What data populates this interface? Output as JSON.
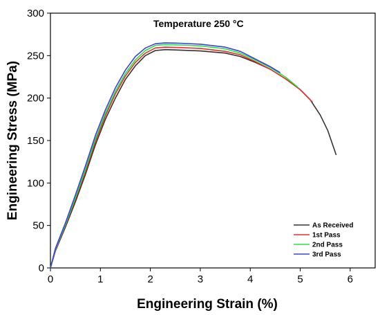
{
  "chart_data": {
    "type": "line",
    "title": "",
    "annotation": "Temperature 250 °C",
    "xlabel": "Engineering Strain (%)",
    "ylabel": "Engineering Stress (MPa)",
    "xlim": [
      0,
      6.5
    ],
    "ylim": [
      0,
      300
    ],
    "xticks": [
      0,
      1,
      2,
      3,
      4,
      5,
      6
    ],
    "yticks": [
      0,
      50,
      100,
      150,
      200,
      250,
      300
    ],
    "grid": false,
    "legend_position": "bottom-right",
    "series": [
      {
        "name": "As Received",
        "color": "#333333",
        "points": [
          [
            0,
            0
          ],
          [
            0.1,
            20
          ],
          [
            0.3,
            48
          ],
          [
            0.5,
            78
          ],
          [
            0.7,
            110
          ],
          [
            0.9,
            145
          ],
          [
            1.1,
            175
          ],
          [
            1.3,
            200
          ],
          [
            1.5,
            222
          ],
          [
            1.7,
            238
          ],
          [
            1.9,
            250
          ],
          [
            2.1,
            256
          ],
          [
            2.3,
            257
          ],
          [
            2.6,
            256.5
          ],
          [
            3.0,
            255.5
          ],
          [
            3.5,
            253
          ],
          [
            3.8,
            249
          ],
          [
            4.1,
            242
          ],
          [
            4.4,
            234
          ],
          [
            4.7,
            223
          ],
          [
            5.0,
            210
          ],
          [
            5.2,
            198
          ],
          [
            5.4,
            180
          ],
          [
            5.55,
            162
          ],
          [
            5.65,
            145
          ],
          [
            5.72,
            133
          ]
        ]
      },
      {
        "name": "1st Pass",
        "color": "#e03030",
        "points": [
          [
            0,
            0
          ],
          [
            0.1,
            21
          ],
          [
            0.3,
            50
          ],
          [
            0.5,
            81
          ],
          [
            0.7,
            113
          ],
          [
            0.9,
            149
          ],
          [
            1.1,
            179
          ],
          [
            1.3,
            205
          ],
          [
            1.5,
            226
          ],
          [
            1.7,
            242
          ],
          [
            1.9,
            253
          ],
          [
            2.1,
            259
          ],
          [
            2.3,
            260
          ],
          [
            2.6,
            259.5
          ],
          [
            3.0,
            258.5
          ],
          [
            3.5,
            255
          ],
          [
            3.8,
            251
          ],
          [
            4.1,
            243
          ],
          [
            4.4,
            234
          ],
          [
            4.7,
            223
          ],
          [
            5.0,
            210
          ],
          [
            5.25,
            195
          ]
        ]
      },
      {
        "name": "2nd Pass",
        "color": "#33dd33",
        "points": [
          [
            0,
            0
          ],
          [
            0.1,
            22
          ],
          [
            0.3,
            51
          ],
          [
            0.5,
            83
          ],
          [
            0.7,
            116
          ],
          [
            0.9,
            152
          ],
          [
            1.1,
            182
          ],
          [
            1.3,
            208
          ],
          [
            1.5,
            229
          ],
          [
            1.7,
            245
          ],
          [
            1.9,
            256
          ],
          [
            2.1,
            262
          ],
          [
            2.3,
            263
          ],
          [
            2.6,
            262.5
          ],
          [
            3.0,
            261.5
          ],
          [
            3.5,
            258
          ],
          [
            3.8,
            253
          ],
          [
            4.1,
            245
          ],
          [
            4.4,
            236
          ],
          [
            4.7,
            225
          ],
          [
            4.95,
            213
          ]
        ]
      },
      {
        "name": "3rd Pass",
        "color": "#3344dd",
        "points": [
          [
            0,
            0
          ],
          [
            0.1,
            23
          ],
          [
            0.3,
            53
          ],
          [
            0.5,
            86
          ],
          [
            0.7,
            120
          ],
          [
            0.9,
            156
          ],
          [
            1.1,
            186
          ],
          [
            1.3,
            212
          ],
          [
            1.5,
            233
          ],
          [
            1.7,
            249
          ],
          [
            1.9,
            259
          ],
          [
            2.1,
            264
          ],
          [
            2.3,
            265
          ],
          [
            2.6,
            264.5
          ],
          [
            3.0,
            263.5
          ],
          [
            3.5,
            260
          ],
          [
            3.8,
            255
          ],
          [
            4.1,
            246
          ],
          [
            4.4,
            237
          ],
          [
            4.6,
            230
          ]
        ]
      }
    ]
  }
}
